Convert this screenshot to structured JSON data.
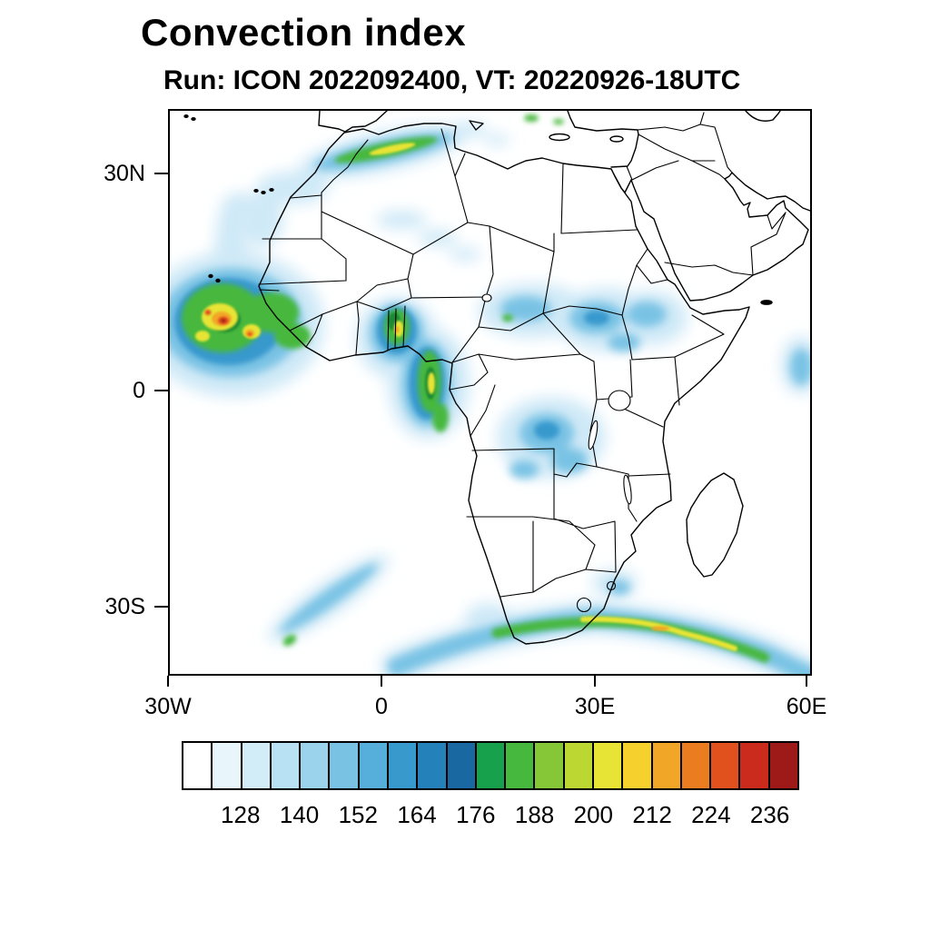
{
  "title": "Convection index",
  "subtitle": "Run: ICON 2022092400,  VT: 20220926-18UTC",
  "axes": {
    "y_tick_labels": [
      "30N",
      "0",
      "30S"
    ],
    "x_tick_labels": [
      "30W",
      "0",
      "30E",
      "60E"
    ]
  },
  "colorbar": {
    "tick_labels": [
      "128",
      "140",
      "152",
      "164",
      "176",
      "188",
      "200",
      "212",
      "224",
      "236"
    ],
    "segment_colors": [
      "#ffffff",
      "#e8f6fc",
      "#d2ecf8",
      "#b8e1f3",
      "#9bd2ec",
      "#79c2e4",
      "#55afda",
      "#3899cd",
      "#2481ba",
      "#1a68a2",
      "#17a14d",
      "#46b83e",
      "#85c737",
      "#bcd632",
      "#e8e436",
      "#f6d02c",
      "#f2a628",
      "#ec7c20",
      "#e0511d",
      "#cb2b1c",
      "#9e1a18"
    ]
  },
  "chart_data": {
    "type": "heatmap",
    "title": "Convection index",
    "model": "ICON",
    "run": "2022092400",
    "valid_time": "20220926-18UTC",
    "region": "Africa and surroundings",
    "projection": "lat-lon",
    "lon_range_deg": [
      -30,
      60
    ],
    "lat_range_deg": [
      -39,
      39
    ],
    "x_tick_values_deg": [
      -30,
      0,
      30,
      60
    ],
    "x_tick_labels": [
      "30W",
      "0",
      "30E",
      "60E"
    ],
    "y_tick_values_deg": [
      30,
      0,
      -30
    ],
    "y_tick_labels": [
      "30N",
      "0",
      "30S"
    ],
    "grid": false,
    "legend_position": "bottom",
    "colorbar": {
      "tick_values": [
        128,
        140,
        152,
        164,
        176,
        188,
        200,
        212,
        224,
        236
      ],
      "min_value": 116,
      "step_per_segment": 6,
      "segment_count": 21,
      "segment_colors": [
        "#ffffff",
        "#e8f6fc",
        "#d2ecf8",
        "#b8e1f3",
        "#9bd2ec",
        "#79c2e4",
        "#55afda",
        "#3899cd",
        "#2481ba",
        "#1a68a2",
        "#17a14d",
        "#46b83e",
        "#85c737",
        "#bcd632",
        "#e8e436",
        "#f6d02c",
        "#f2a628",
        "#ec7c20",
        "#e0511d",
        "#cb2b1c",
        "#9e1a18"
      ]
    },
    "features": [
      {
        "area": "Atlantic off Senegal / Guinea coast",
        "approx_lon": -22,
        "approx_lat": 9,
        "max_index": 240,
        "note": "strongest cell, red/orange cores in green-yellow field"
      },
      {
        "area": "Mediterranean coast of Algeria / Morocco",
        "approx_lon": 0,
        "approx_lat": 34,
        "max_index": 205,
        "note": "narrow diagonal green-yellow streak"
      },
      {
        "area": "Ghana / Togo coast",
        "approx_lon": 0,
        "approx_lat": 6,
        "max_index": 210,
        "note": "green band with yellow core"
      },
      {
        "area": "Nigeria / Cameroon / Gabon coast",
        "approx_lon": 9,
        "approx_lat": 1,
        "max_index": 205,
        "note": "elongated green-yellow band along coast"
      },
      {
        "area": "Sahel, Sudan and Ethiopia",
        "approx_lon": 28,
        "approx_lat": 12,
        "max_index": 175,
        "note": "scattered light-to-medium blue patches"
      },
      {
        "area": "Congo basin",
        "approx_lon": 24,
        "approx_lat": -5,
        "max_index": 160,
        "note": "scattered light blue"
      },
      {
        "area": "Southern Ocean band south of South Africa",
        "approx_lon": 30,
        "approx_lat": -37,
        "max_index": 215,
        "note": "long frontal band, green with yellow core"
      },
      {
        "area": "South Atlantic streak",
        "approx_lon": -12,
        "approx_lat": -30,
        "max_index": 150,
        "note": "thin diagonal light blue streak"
      },
      {
        "area": "East of Madagascar / map edge",
        "approx_lon": 59,
        "approx_lat": -4,
        "max_index": 150,
        "note": "small blue patch at right edge"
      }
    ]
  }
}
